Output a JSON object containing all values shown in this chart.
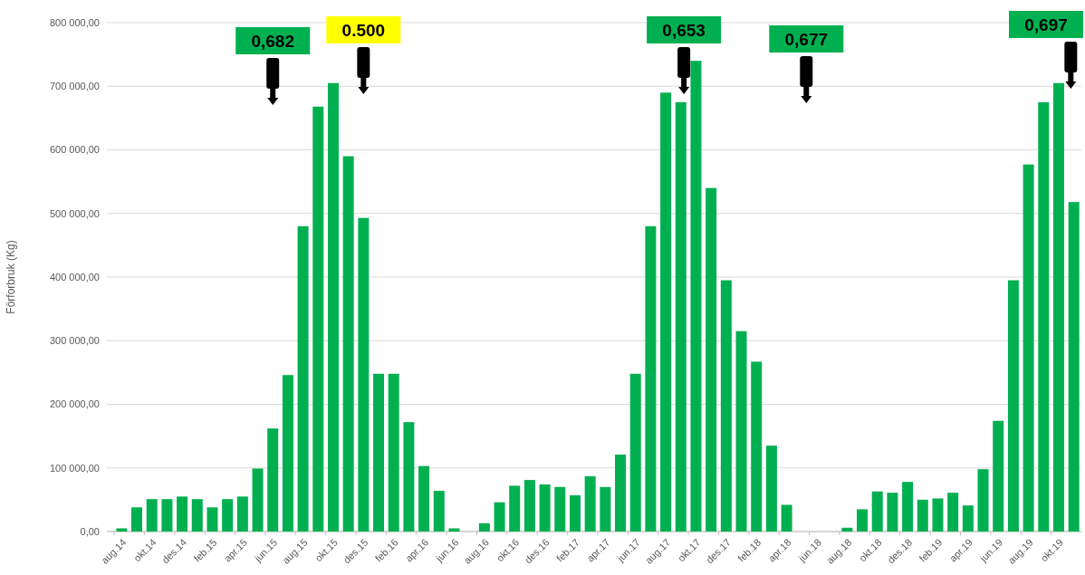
{
  "chart_data": {
    "type": "bar",
    "ylabel": "Fôrforbruk (Kg)",
    "categories": [
      "aug.14",
      null,
      "okt.14",
      null,
      "des.14",
      null,
      "feb.15",
      null,
      "apr.15",
      null,
      "jun.15",
      null,
      "aug.15",
      null,
      "okt.15",
      null,
      "des.15",
      null,
      "feb.16",
      null,
      "apr.16",
      null,
      "jun.16",
      null,
      "aug.16",
      null,
      "okt.16",
      null,
      "des.16",
      null,
      "feb.17",
      null,
      "apr.17",
      null,
      "jun.17",
      null,
      "aug.17",
      null,
      "okt.17",
      null,
      "des.17",
      null,
      "feb.18",
      null,
      "apr.18",
      null,
      "jun.18",
      null,
      "aug.18",
      null,
      "okt.18",
      null,
      "des.18",
      null,
      "feb.19",
      null,
      "apr.19",
      null,
      "jun.19",
      null,
      "aug.19",
      null,
      "okt.19",
      null
    ],
    "values": [
      5000,
      38000,
      51000,
      51000,
      55000,
      51000,
      38000,
      51000,
      55000,
      99000,
      162000,
      246000,
      480000,
      668000,
      705000,
      590000,
      493000,
      248000,
      248000,
      172000,
      103000,
      64000,
      5000,
      0,
      13000,
      46000,
      72000,
      81000,
      74000,
      70000,
      57000,
      87000,
      70000,
      121000,
      248000,
      480000,
      690000,
      675000,
      740000,
      540000,
      395000,
      315000,
      267000,
      135000,
      42000,
      0,
      0,
      0,
      6000,
      35000,
      63000,
      61000,
      78000,
      50000,
      52000,
      61000,
      41000,
      98000,
      174000,
      395000,
      577000,
      675000,
      705000,
      518000
    ],
    "color": "#00b050",
    "ylim": [
      0,
      800000
    ],
    "yticks": [
      {
        "value": 0,
        "label": "0,00"
      },
      {
        "value": 100000,
        "label": "100 000,00"
      },
      {
        "value": 200000,
        "label": "200 000,00"
      },
      {
        "value": 300000,
        "label": "300 000,00"
      },
      {
        "value": 400000,
        "label": "400 000,00"
      },
      {
        "value": 500000,
        "label": "500 000,00"
      },
      {
        "value": 600000,
        "label": "600 000,00"
      },
      {
        "value": 700000,
        "label": "700 000,00"
      },
      {
        "value": 800000,
        "label": "800 000,00"
      }
    ],
    "grid": "y",
    "annotations": [
      "0,682",
      "0.500",
      "0,653",
      "0,677",
      "0,697"
    ]
  }
}
